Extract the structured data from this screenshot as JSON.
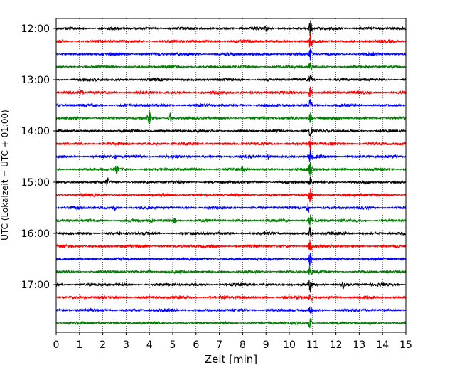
{
  "chart_data": {
    "type": "line",
    "xlabel": "Zeit  [min]",
    "ylabel": "UTC (Lokalzeit = UTC + 01:00)",
    "xlim": [
      0,
      15
    ],
    "x_ticks": [
      0,
      1,
      2,
      3,
      4,
      5,
      6,
      7,
      8,
      9,
      10,
      11,
      12,
      13,
      14,
      15
    ],
    "y_ticks": [
      "12:00",
      "13:00",
      "14:00",
      "15:00",
      "16:00",
      "17:00"
    ],
    "grid": "vertical-dotted",
    "trace_interval_min": 15,
    "trace_colors": [
      "#000000",
      "#ff0000",
      "#0000ff",
      "#008000"
    ],
    "traces": [
      {
        "time": "12:00",
        "color": "#000000",
        "events": [
          {
            "t": 9.0,
            "amp": 3
          },
          {
            "t": 10.9,
            "amp": 12
          }
        ]
      },
      {
        "time": "12:15",
        "color": "#ff0000",
        "events": [
          {
            "t": 10.9,
            "amp": 10
          }
        ]
      },
      {
        "time": "12:30",
        "color": "#0000ff",
        "events": [
          {
            "t": 10.9,
            "amp": 9
          }
        ]
      },
      {
        "time": "12:45",
        "color": "#008000",
        "events": [
          {
            "t": 10.9,
            "amp": 9
          }
        ]
      },
      {
        "time": "13:00",
        "color": "#000000",
        "events": [
          {
            "t": 10.9,
            "amp": 9
          }
        ]
      },
      {
        "time": "13:15",
        "color": "#ff0000",
        "events": [
          {
            "t": 1.1,
            "amp": 3
          },
          {
            "t": 10.9,
            "amp": 9
          }
        ]
      },
      {
        "time": "13:30",
        "color": "#0000ff",
        "events": [
          {
            "t": 10.9,
            "amp": 9
          }
        ]
      },
      {
        "time": "13:45",
        "color": "#008000",
        "events": [
          {
            "t": 4.0,
            "amp": 8
          },
          {
            "t": 4.9,
            "amp": 7
          },
          {
            "t": 10.9,
            "amp": 9
          }
        ]
      },
      {
        "time": "14:00",
        "color": "#000000",
        "events": [
          {
            "t": 10.9,
            "amp": 9
          }
        ]
      },
      {
        "time": "14:15",
        "color": "#ff0000",
        "events": [
          {
            "t": 10.9,
            "amp": 9
          }
        ]
      },
      {
        "time": "14:30",
        "color": "#0000ff",
        "events": [
          {
            "t": 2.5,
            "amp": 4
          },
          {
            "t": 9.1,
            "amp": 4
          },
          {
            "t": 10.9,
            "amp": 9
          }
        ]
      },
      {
        "time": "14:45",
        "color": "#008000",
        "events": [
          {
            "t": 2.6,
            "amp": 5
          },
          {
            "t": 8.0,
            "amp": 4
          },
          {
            "t": 10.9,
            "amp": 9
          }
        ]
      },
      {
        "time": "15:00",
        "color": "#000000",
        "events": [
          {
            "t": 2.2,
            "amp": 5
          },
          {
            "t": 10.9,
            "amp": 9
          }
        ]
      },
      {
        "time": "15:15",
        "color": "#ff0000",
        "events": [
          {
            "t": 10.9,
            "amp": 9
          }
        ]
      },
      {
        "time": "15:30",
        "color": "#0000ff",
        "events": [
          {
            "t": 2.5,
            "amp": 4
          },
          {
            "t": 10.8,
            "amp": 9
          }
        ]
      },
      {
        "time": "15:45",
        "color": "#008000",
        "events": [
          {
            "t": 4.1,
            "amp": 3
          },
          {
            "t": 5.1,
            "amp": 5
          },
          {
            "t": 10.9,
            "amp": 9
          }
        ]
      },
      {
        "time": "16:00",
        "color": "#000000",
        "events": [
          {
            "t": 10.9,
            "amp": 9
          }
        ]
      },
      {
        "time": "16:15",
        "color": "#ff0000",
        "events": [
          {
            "t": 10.9,
            "amp": 9
          }
        ]
      },
      {
        "time": "16:30",
        "color": "#0000ff",
        "events": [
          {
            "t": 10.9,
            "amp": 9
          }
        ]
      },
      {
        "time": "16:45",
        "color": "#008000",
        "events": [
          {
            "t": 4.0,
            "amp": 3
          },
          {
            "t": 10.9,
            "amp": 9
          }
        ]
      },
      {
        "time": "17:00",
        "color": "#000000",
        "events": [
          {
            "t": 10.9,
            "amp": 9
          },
          {
            "t": 12.3,
            "amp": 5
          }
        ]
      },
      {
        "time": "17:15",
        "color": "#ff0000",
        "events": [
          {
            "t": 10.9,
            "amp": 9
          }
        ]
      },
      {
        "time": "17:30",
        "color": "#0000ff",
        "events": [
          {
            "t": 10.9,
            "amp": 9
          }
        ]
      },
      {
        "time": "17:45",
        "color": "#008000",
        "events": [
          {
            "t": 10.9,
            "amp": 9
          }
        ]
      }
    ]
  }
}
